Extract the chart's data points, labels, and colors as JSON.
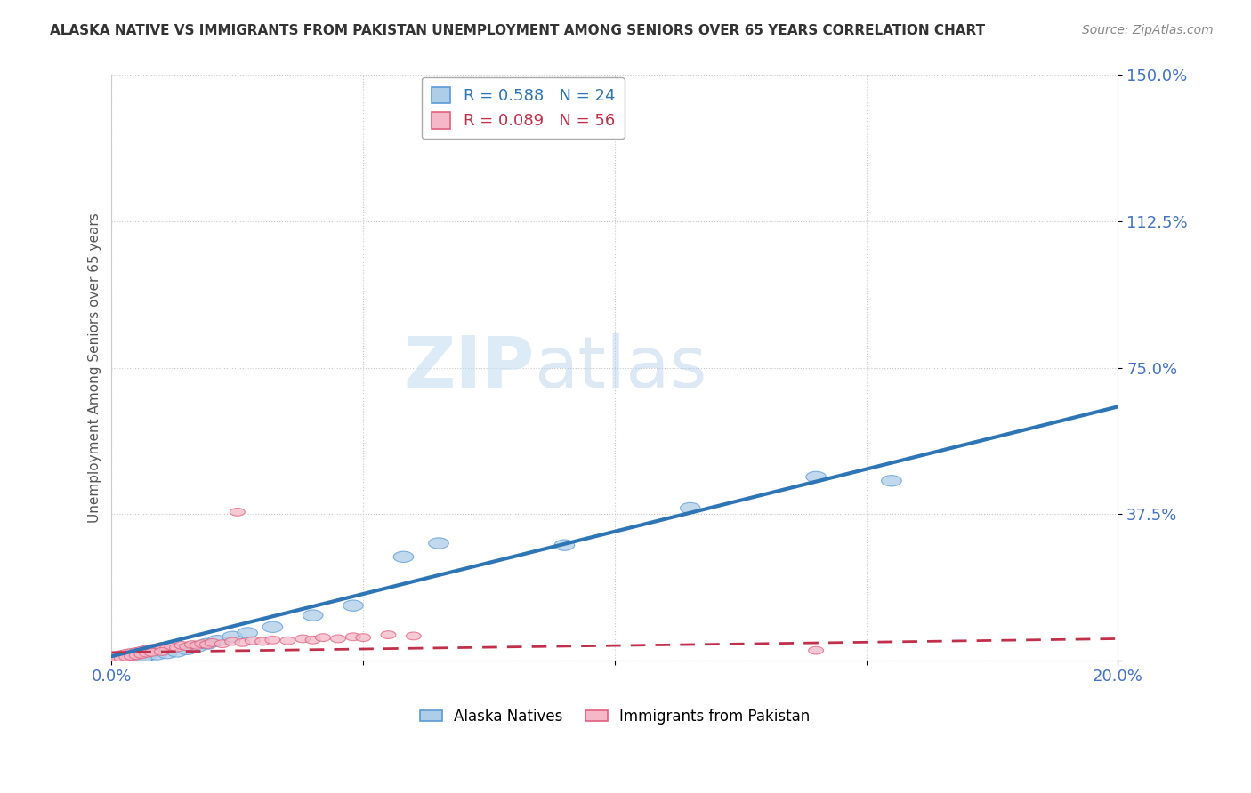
{
  "title": "ALASKA NATIVE VS IMMIGRANTS FROM PAKISTAN UNEMPLOYMENT AMONG SENIORS OVER 65 YEARS CORRELATION CHART",
  "source": "Source: ZipAtlas.com",
  "ylabel": "Unemployment Among Seniors over 65 years",
  "xlim": [
    0.0,
    0.2
  ],
  "ylim": [
    0.0,
    1.5
  ],
  "xticks": [
    0.0,
    0.05,
    0.1,
    0.15,
    0.2
  ],
  "xtick_labels": [
    "0.0%",
    "",
    "",
    "",
    "20.0%"
  ],
  "ytick_positions": [
    0.0,
    0.375,
    0.75,
    1.125,
    1.5
  ],
  "ytick_labels": [
    "",
    "37.5%",
    "75.0%",
    "112.5%",
    "150.0%"
  ],
  "background_color": "#ffffff",
  "watermark_zip": "ZIP",
  "watermark_atlas": "atlas",
  "alaska_natives": {
    "name": "Alaska Natives",
    "R": 0.588,
    "N": 24,
    "color": "#aecde8",
    "edge_color": "#5b9bd5",
    "line_color": "#2e75b6",
    "line_style": "-",
    "line_x0": 0.0,
    "line_y0": 0.01,
    "line_x1": 0.2,
    "line_y1": 0.65,
    "x": [
      0.001,
      0.003,
      0.005,
      0.007,
      0.009,
      0.011,
      0.013,
      0.015,
      0.017,
      0.019,
      0.021,
      0.024,
      0.027,
      0.032,
      0.04,
      0.048,
      0.058,
      0.065,
      0.09,
      0.115,
      0.14,
      0.155,
      0.003,
      0.006
    ],
    "y": [
      0.005,
      0.008,
      0.01,
      0.012,
      0.015,
      0.018,
      0.022,
      0.028,
      0.035,
      0.042,
      0.05,
      0.06,
      0.07,
      0.085,
      0.115,
      0.14,
      0.265,
      0.3,
      0.295,
      0.39,
      0.47,
      0.46,
      0.002,
      0.003
    ]
  },
  "pakistan_immigrants": {
    "name": "Immigrants from Pakistan",
    "R": 0.089,
    "N": 56,
    "color": "#f4b8c8",
    "edge_color": "#e06080",
    "line_color": "#c0304a",
    "line_style": "--",
    "line_x0": 0.0,
    "line_y0": 0.02,
    "line_x1": 0.2,
    "line_y1": 0.055,
    "x": [
      0.001,
      0.001,
      0.002,
      0.002,
      0.003,
      0.003,
      0.004,
      0.004,
      0.005,
      0.005,
      0.006,
      0.006,
      0.007,
      0.007,
      0.008,
      0.008,
      0.009,
      0.009,
      0.01,
      0.01,
      0.011,
      0.012,
      0.013,
      0.014,
      0.015,
      0.016,
      0.017,
      0.018,
      0.019,
      0.02,
      0.022,
      0.024,
      0.026,
      0.028,
      0.03,
      0.032,
      0.035,
      0.038,
      0.04,
      0.042,
      0.045,
      0.048,
      0.05,
      0.055,
      0.06,
      0.001,
      0.002,
      0.003,
      0.004,
      0.005,
      0.006,
      0.007,
      0.008,
      0.01,
      0.025,
      0.14
    ],
    "y": [
      0.005,
      0.01,
      0.008,
      0.015,
      0.01,
      0.018,
      0.012,
      0.02,
      0.015,
      0.022,
      0.018,
      0.025,
      0.02,
      0.028,
      0.022,
      0.03,
      0.025,
      0.032,
      0.028,
      0.035,
      0.03,
      0.035,
      0.032,
      0.038,
      0.035,
      0.04,
      0.038,
      0.042,
      0.04,
      0.045,
      0.042,
      0.048,
      0.045,
      0.05,
      0.048,
      0.052,
      0.05,
      0.055,
      0.052,
      0.058,
      0.055,
      0.06,
      0.058,
      0.065,
      0.062,
      0.003,
      0.005,
      0.008,
      0.01,
      0.012,
      0.015,
      0.018,
      0.02,
      0.022,
      0.38,
      0.025
    ]
  }
}
